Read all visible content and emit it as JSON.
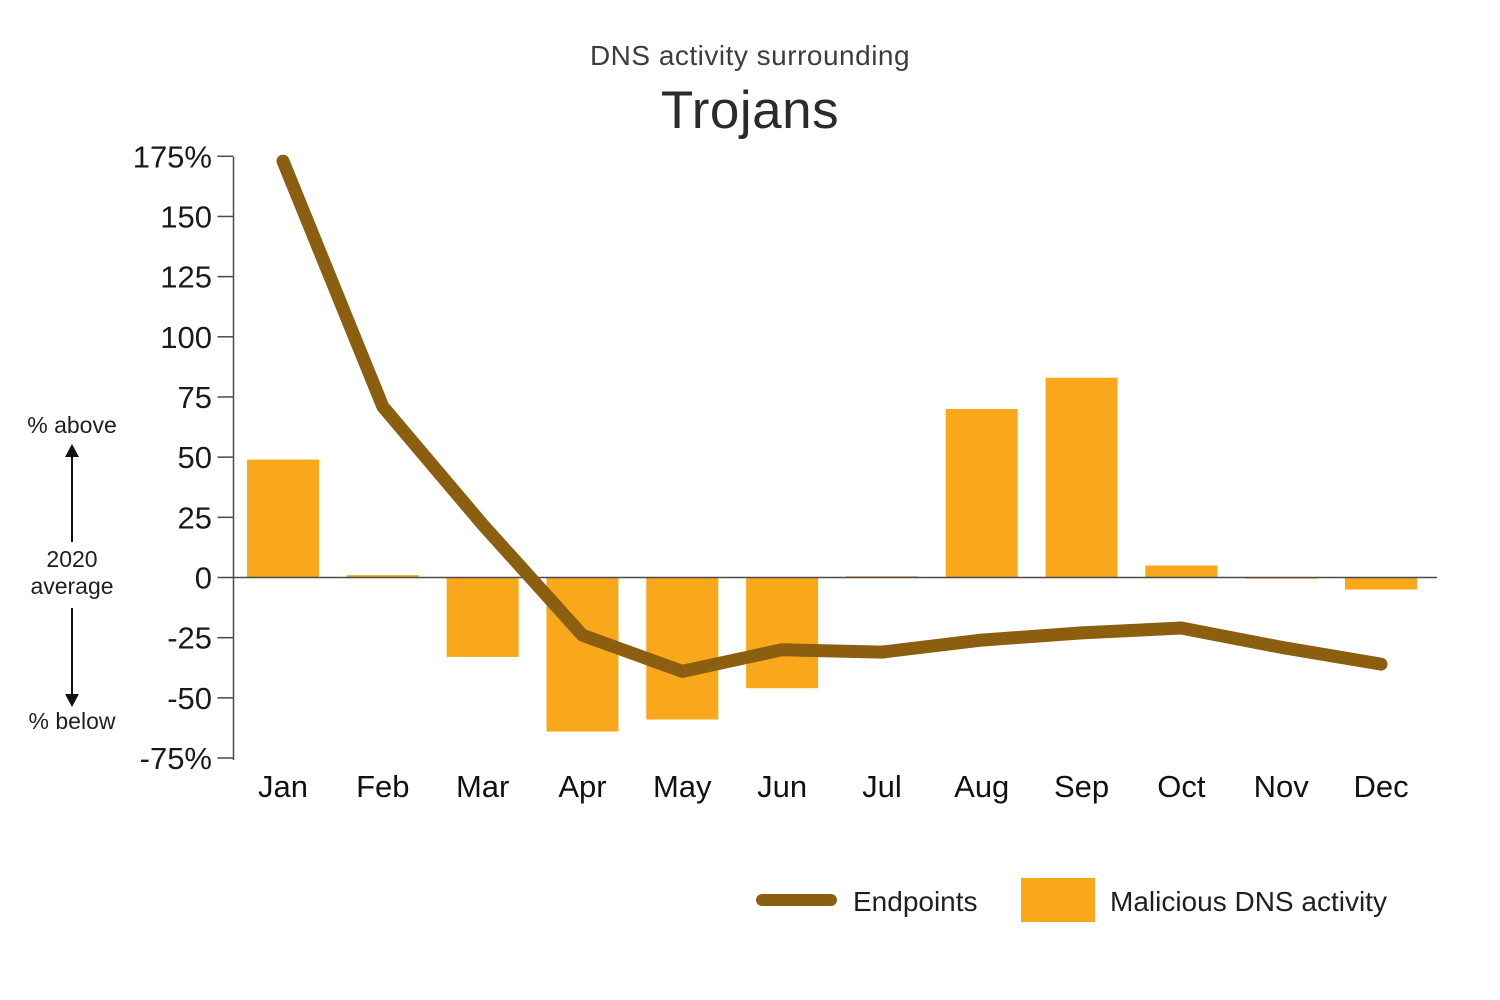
{
  "header": {
    "title": "DNS activity surrounding",
    "subtitle": "Trojans"
  },
  "axis_annotations": {
    "above": "% above",
    "average": "2020 average",
    "below": "% below"
  },
  "legend": {
    "items": [
      {
        "label": "Endpoints",
        "swatch": "line",
        "color": "#8B5E10"
      },
      {
        "label": "Malicious DNS activity",
        "swatch": "square",
        "color": "#F9A81C"
      }
    ]
  },
  "chart_data": {
    "type": "combo-bar-line",
    "title": "DNS activity surrounding",
    "subtitle": "Trojans",
    "categories": [
      "Jan",
      "Feb",
      "Mar",
      "Apr",
      "May",
      "Jun",
      "Jul",
      "Aug",
      "Sep",
      "Oct",
      "Nov",
      "Dec"
    ],
    "series": [
      {
        "name": "Endpoints",
        "type": "line",
        "color": "#8B5E10",
        "values": [
          173,
          71,
          22,
          -24,
          -39,
          -30,
          -31,
          -26,
          -23,
          -21,
          -29,
          -36
        ]
      },
      {
        "name": "Malicious DNS activity",
        "type": "bar",
        "color": "#F9A81C",
        "values": [
          49,
          1,
          -33,
          -64,
          -59,
          -46,
          0.5,
          70,
          83,
          5,
          -0.5,
          -5
        ]
      }
    ],
    "ylabel_context": {
      "above_zero": "% above",
      "zero_reference": "2020 average",
      "below_zero": "% below"
    },
    "ylim": [
      -75,
      175
    ],
    "y_ticks": [
      {
        "value": 175,
        "label": "175%"
      },
      {
        "value": 150,
        "label": "150"
      },
      {
        "value": 125,
        "label": "125"
      },
      {
        "value": 100,
        "label": "100"
      },
      {
        "value": 75,
        "label": "75"
      },
      {
        "value": 50,
        "label": "50"
      },
      {
        "value": 25,
        "label": "25"
      },
      {
        "value": 0,
        "label": "0"
      },
      {
        "value": -25,
        "label": "-25"
      },
      {
        "value": -50,
        "label": "-50"
      },
      {
        "value": -75,
        "label": "-75%"
      }
    ],
    "grid": false,
    "zero_line": true,
    "legend_position": "bottom-right",
    "axis_color": "#4a4a4a",
    "text_color": "#1a1a1a"
  }
}
